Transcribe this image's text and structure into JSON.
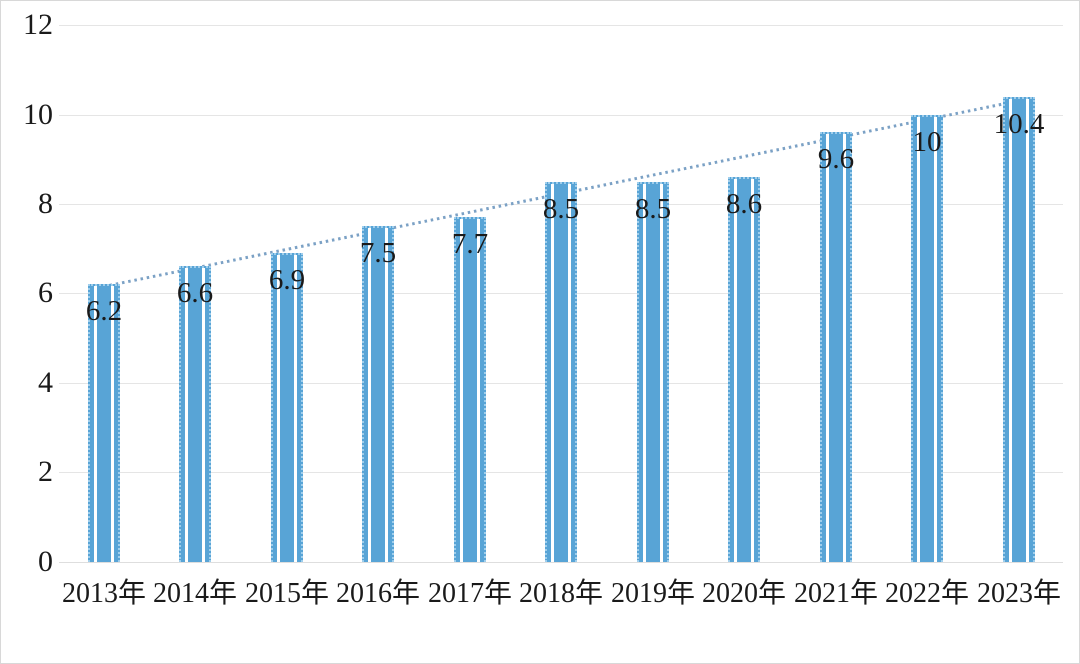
{
  "chart_data": {
    "type": "bar",
    "title": "",
    "xlabel": "",
    "ylabel": "",
    "categories": [
      "2013年",
      "2014年",
      "2015年",
      "2016年",
      "2017年",
      "2018年",
      "2019年",
      "2020年",
      "2021年",
      "2022年",
      "2023年"
    ],
    "values": [
      6.2,
      6.6,
      6.9,
      7.5,
      7.7,
      8.5,
      8.5,
      8.6,
      9.6,
      10,
      10.4
    ],
    "value_labels": [
      "6.2",
      "6.6",
      "6.9",
      "7.5",
      "7.7",
      "8.5",
      "8.5",
      "8.6",
      "9.6",
      "10",
      "10.4"
    ],
    "y_ticks": [
      0,
      2,
      4,
      6,
      8,
      10,
      12
    ],
    "ylim": [
      0,
      12
    ],
    "grid": "horizontal-only",
    "legend_position": "none",
    "trendline": {
      "type": "linear",
      "style": "dotted"
    },
    "colors": {
      "bar_fill": "#58a4d6",
      "bar_edge": "#9fceec",
      "bar_stripe": "#ffffff",
      "trendline": "#7ba1c5",
      "gridline": "#e5e5e5",
      "baseline": "#dedede",
      "text": "#1a1a1a",
      "background": "#ffffff"
    }
  }
}
